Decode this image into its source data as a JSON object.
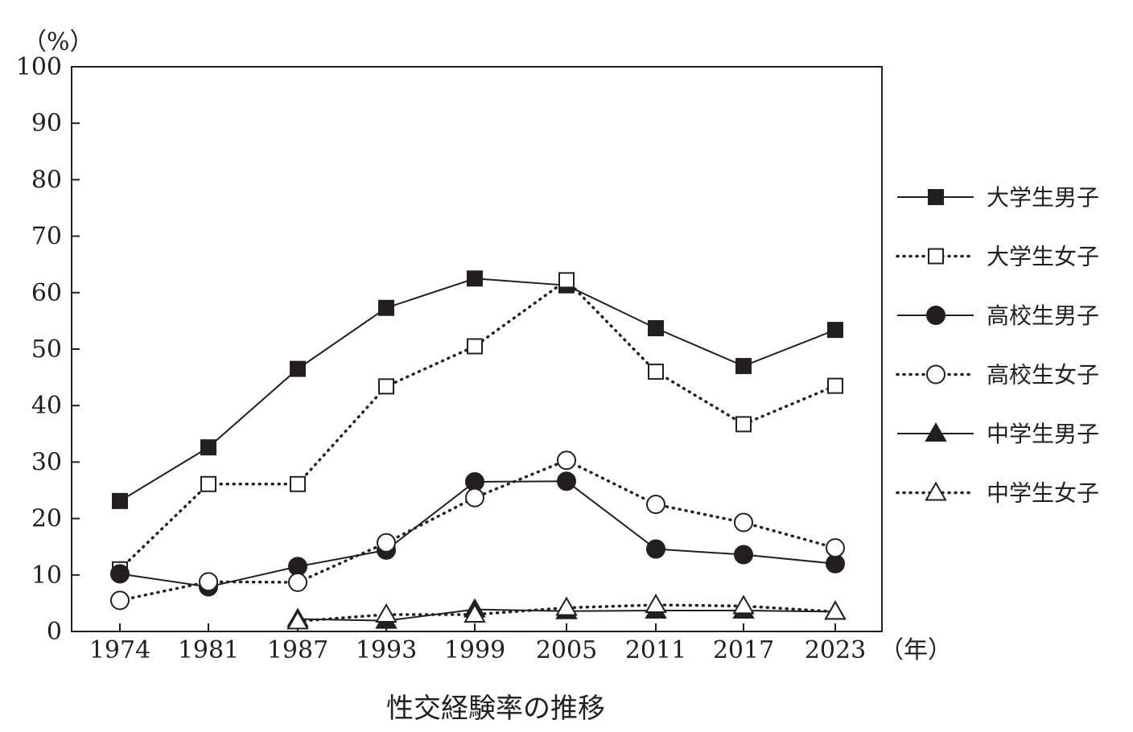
{
  "chart_data": {
    "type": "line",
    "title": "性交経験率の推移",
    "ylabel": "（%）",
    "xlabel": "（年）",
    "ylim": [
      0,
      100
    ],
    "yticks": [
      0,
      10,
      20,
      30,
      40,
      50,
      60,
      70,
      80,
      90,
      100
    ],
    "categories": [
      "1974",
      "1981",
      "1987",
      "1993",
      "1999",
      "2005",
      "2011",
      "2017",
      "2023"
    ],
    "grid": false,
    "legend_position": "right",
    "series": [
      {
        "name": "大学生男子",
        "values": [
          23.1,
          32.6,
          46.5,
          57.3,
          62.5,
          61.3,
          53.7,
          47.0,
          53.4
        ],
        "marker": "filled-square",
        "line": "solid"
      },
      {
        "name": "大学生女子",
        "values": [
          11.0,
          26.1,
          26.1,
          43.4,
          50.5,
          62.2,
          46.0,
          36.7,
          43.5
        ],
        "marker": "open-square",
        "line": "dotted"
      },
      {
        "name": "高校生男子",
        "values": [
          10.2,
          7.9,
          11.5,
          14.4,
          26.5,
          26.6,
          14.6,
          13.6,
          12.0
        ],
        "marker": "filled-circle",
        "line": "solid"
      },
      {
        "name": "高校生女子",
        "values": [
          5.5,
          8.8,
          8.7,
          15.7,
          23.7,
          30.3,
          22.5,
          19.3,
          14.8
        ],
        "marker": "open-circle",
        "line": "dotted"
      },
      {
        "name": "中学生男子",
        "values": [
          null,
          null,
          2.2,
          1.9,
          3.9,
          3.6,
          3.7,
          3.7,
          3.5
        ],
        "marker": "filled-triangle",
        "line": "solid"
      },
      {
        "name": "中学生女子",
        "values": [
          null,
          null,
          1.8,
          3.0,
          3.0,
          4.2,
          4.7,
          4.5,
          3.5
        ],
        "marker": "open-triangle",
        "line": "dotted"
      }
    ],
    "colors": {
      "ink": "#231f20",
      "background": "#ffffff"
    }
  }
}
